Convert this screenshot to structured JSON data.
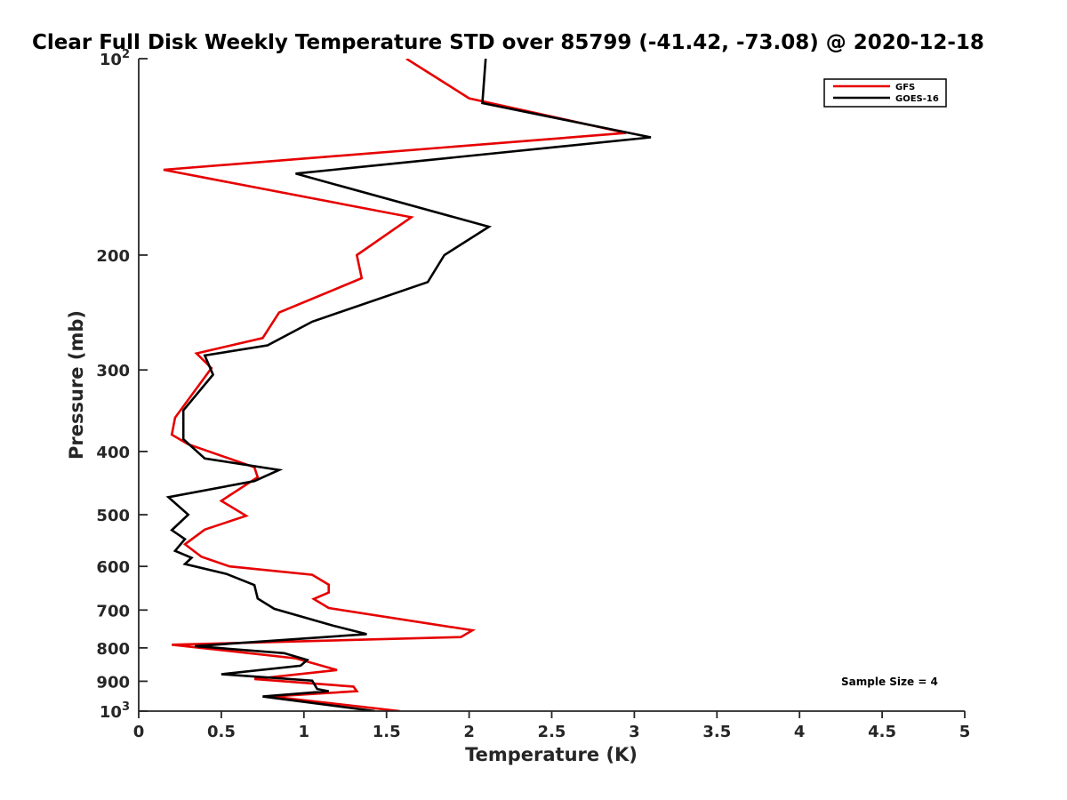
{
  "chart_data": {
    "type": "line",
    "title": "Clear Full Disk Weekly Temperature STD over 85799 (-41.42, -73.08) @ 2020-12-18",
    "xlabel": "Temperature (K)",
    "ylabel": "Pressure (mb)",
    "xlim": [
      0,
      5
    ],
    "ylim": [
      100,
      1000
    ],
    "y_scale": "log",
    "y_reversed": true,
    "grid": false,
    "legend_position": "top-right",
    "x_ticks": [
      "0",
      "0.5",
      "1",
      "1.5",
      "2",
      "2.5",
      "3",
      "3.5",
      "4",
      "4.5",
      "5"
    ],
    "x_tick_values": [
      0,
      0.5,
      1,
      1.5,
      2,
      2.5,
      3,
      3.5,
      4,
      4.5,
      5
    ],
    "y_ticks": [
      {
        "value": 100,
        "base": "10",
        "exp": "2"
      },
      {
        "value": 200,
        "base": "200",
        "exp": ""
      },
      {
        "value": 300,
        "base": "300",
        "exp": ""
      },
      {
        "value": 400,
        "base": "400",
        "exp": ""
      },
      {
        "value": 500,
        "base": "500",
        "exp": ""
      },
      {
        "value": 600,
        "base": "600",
        "exp": ""
      },
      {
        "value": 700,
        "base": "700",
        "exp": ""
      },
      {
        "value": 800,
        "base": "800",
        "exp": ""
      },
      {
        "value": 900,
        "base": "900",
        "exp": ""
      },
      {
        "value": 1000,
        "base": "10",
        "exp": "3"
      }
    ],
    "annotation": "Sample Size = 4",
    "series": [
      {
        "name": "GFS",
        "color": "#e60000",
        "points": [
          [
            1.62,
            100
          ],
          [
            2.0,
            115
          ],
          [
            2.95,
            130
          ],
          [
            0.15,
            148
          ],
          [
            1.65,
            175
          ],
          [
            1.32,
            200
          ],
          [
            1.35,
            217
          ],
          [
            0.85,
            245
          ],
          [
            0.75,
            268
          ],
          [
            0.35,
            283
          ],
          [
            0.44,
            298
          ],
          [
            0.22,
            355
          ],
          [
            0.2,
            377
          ],
          [
            0.3,
            390
          ],
          [
            0.7,
            423
          ],
          [
            0.72,
            438
          ],
          [
            0.5,
            476
          ],
          [
            0.65,
            502
          ],
          [
            0.4,
            527
          ],
          [
            0.28,
            555
          ],
          [
            0.38,
            580
          ],
          [
            0.55,
            600
          ],
          [
            1.05,
            618
          ],
          [
            1.15,
            640
          ],
          [
            1.15,
            658
          ],
          [
            1.06,
            673
          ],
          [
            1.15,
            695
          ],
          [
            2.02,
            752
          ],
          [
            1.95,
            770
          ],
          [
            0.2,
            791
          ],
          [
            0.95,
            830
          ],
          [
            1.2,
            865
          ],
          [
            0.7,
            893
          ],
          [
            1.3,
            917
          ],
          [
            1.32,
            932
          ],
          [
            0.8,
            950
          ],
          [
            1.58,
            1000
          ]
        ]
      },
      {
        "name": "GOES-16",
        "color": "#000000",
        "points": [
          [
            2.1,
            100
          ],
          [
            2.08,
            117
          ],
          [
            3.1,
            132
          ],
          [
            0.95,
            150
          ],
          [
            2.12,
            181
          ],
          [
            1.85,
            200
          ],
          [
            1.75,
            220
          ],
          [
            1.05,
            253
          ],
          [
            0.78,
            275
          ],
          [
            0.4,
            285
          ],
          [
            0.45,
            305
          ],
          [
            0.27,
            346
          ],
          [
            0.27,
            383
          ],
          [
            0.4,
            410
          ],
          [
            0.85,
            427
          ],
          [
            0.7,
            444
          ],
          [
            0.18,
            470
          ],
          [
            0.3,
            500
          ],
          [
            0.2,
            528
          ],
          [
            0.28,
            545
          ],
          [
            0.22,
            568
          ],
          [
            0.32,
            582
          ],
          [
            0.28,
            595
          ],
          [
            0.53,
            616
          ],
          [
            0.7,
            641
          ],
          [
            0.72,
            672
          ],
          [
            0.82,
            697
          ],
          [
            1.18,
            740
          ],
          [
            1.38,
            762
          ],
          [
            0.34,
            795
          ],
          [
            0.88,
            815
          ],
          [
            1.02,
            835
          ],
          [
            0.98,
            852
          ],
          [
            0.5,
            878
          ],
          [
            1.05,
            898
          ],
          [
            1.08,
            925
          ],
          [
            1.15,
            932
          ],
          [
            0.75,
            950
          ],
          [
            1.43,
            1000
          ]
        ]
      }
    ]
  }
}
